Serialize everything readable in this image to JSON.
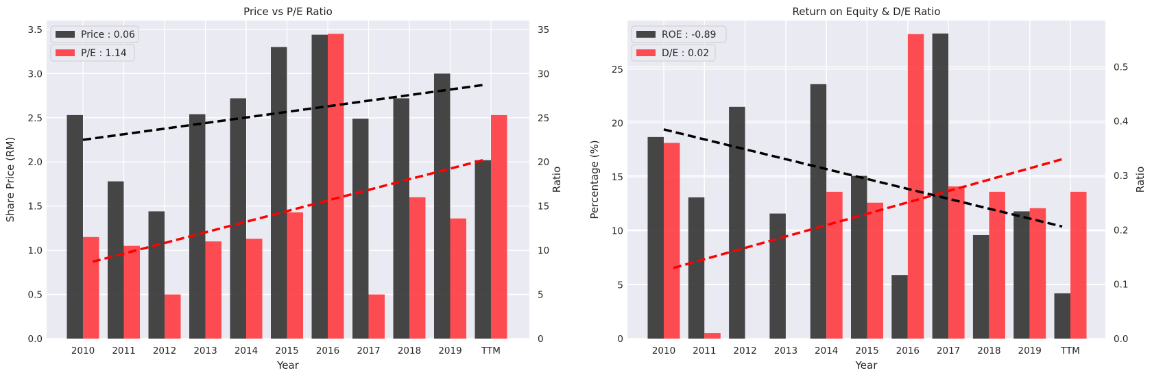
{
  "charts": [
    {
      "type": "bar",
      "title": "Price vs P/E Ratio",
      "xlabel": "Year",
      "ylabel_left": "Share Price (RM)",
      "ylabel_right": "Ratio",
      "categories": [
        "2010",
        "2011",
        "2012",
        "2013",
        "2014",
        "2015",
        "2016",
        "2017",
        "2018",
        "2019",
        "TTM"
      ],
      "left_ylim": [
        0,
        3.6
      ],
      "left_ticks": [
        "0.0",
        "0.5",
        "1.0",
        "1.5",
        "2.0",
        "2.5",
        "3.0",
        "3.5"
      ],
      "right_ylim": [
        0,
        36
      ],
      "right_ticks": [
        "0",
        "5",
        "10",
        "15",
        "20",
        "25",
        "30",
        "35"
      ],
      "series": [
        {
          "name": "Price : 0.06",
          "axis": "left",
          "color": "#333333",
          "values": [
            2.53,
            1.78,
            1.44,
            2.54,
            2.72,
            3.3,
            3.44,
            2.49,
            2.72,
            3.0,
            2.02
          ],
          "trend": [
            2.25,
            2.87
          ]
        },
        {
          "name": "P/E : 1.14",
          "axis": "right",
          "color": "#ff3b3f",
          "values": [
            11.5,
            10.5,
            5.0,
            11.0,
            11.3,
            14.3,
            34.5,
            5.0,
            16.0,
            13.6,
            25.3
          ],
          "trend": [
            8.7,
            20.2
          ]
        }
      ],
      "grid": true,
      "legend": "top-left"
    },
    {
      "type": "bar",
      "title": "Return on Equity & D/E Ratio",
      "xlabel": "Year",
      "ylabel_left": "Percentage (%)",
      "ylabel_right": "Ratio",
      "categories": [
        "2010",
        "2011",
        "2012",
        "2013",
        "2014",
        "2015",
        "2016",
        "2017",
        "2018",
        "2019",
        "TTM"
      ],
      "left_ylim": [
        0,
        29.5
      ],
      "left_ticks": [
        "0",
        "5",
        "10",
        "15",
        "20",
        "25"
      ],
      "right_ylim": [
        0,
        0.585
      ],
      "right_ticks": [
        "0.0",
        "0.1",
        "0.2",
        "0.3",
        "0.4",
        "0.5"
      ],
      "series": [
        {
          "name": "ROE : -0.89",
          "axis": "left",
          "color": "#333333",
          "values": [
            18.7,
            13.1,
            21.5,
            11.6,
            23.6,
            15.1,
            5.9,
            28.3,
            9.6,
            11.8,
            4.2
          ],
          "trend": [
            19.4,
            10.4
          ]
        },
        {
          "name": "D/E : 0.02",
          "axis": "right",
          "color": "#ff3b3f",
          "values": [
            0.36,
            0.01,
            0.0,
            0.0,
            0.27,
            0.25,
            0.56,
            0.28,
            0.27,
            0.24,
            0.27
          ],
          "trend": [
            0.13,
            0.33
          ]
        }
      ],
      "grid": true,
      "legend": "top-left"
    }
  ]
}
